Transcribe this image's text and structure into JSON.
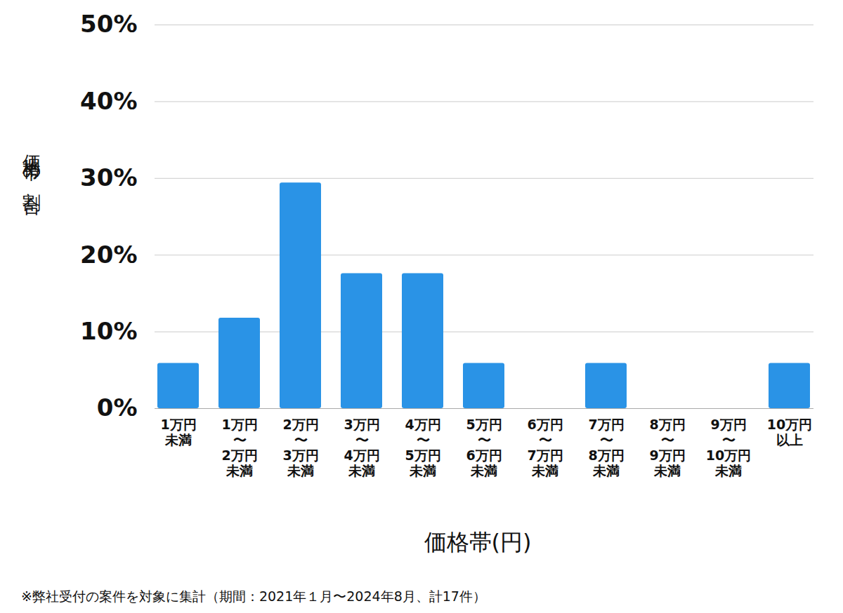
{
  "chart_data": {
    "type": "bar",
    "categories": [
      "1万円\n未満",
      "1万円\n〜\n2万円\n未満",
      "2万円\n〜\n3万円\n未満",
      "3万円\n〜\n4万円\n未満",
      "4万円\n〜\n5万円\n未満",
      "5万円\n〜\n6万円\n未満",
      "6万円\n〜\n7万円\n未満",
      "7万円\n〜\n8万円\n未満",
      "8万円\n〜\n9万円\n未満",
      "9万円\n〜\n10万円\n未満",
      "10万円\n以上"
    ],
    "values": [
      5.9,
      11.8,
      29.4,
      17.6,
      17.6,
      5.9,
      0,
      5.9,
      0,
      0,
      5.9
    ],
    "color": "#2a93e6",
    "x_label": "価格帯(円)",
    "y_label": "価格帯の割合",
    "caption": "※弊社受付の案件を対象に集計（期間：2021年１月〜2024年8月、計17件）",
    "ylim": [
      0,
      50
    ],
    "yticks": [
      {
        "value": 0,
        "label": "0%"
      },
      {
        "value": 10,
        "label": "10%"
      },
      {
        "value": 20,
        "label": "20%"
      },
      {
        "value": 30,
        "label": "30%"
      },
      {
        "value": 40,
        "label": "40%"
      },
      {
        "value": 50,
        "label": "50%"
      }
    ],
    "grid": true
  }
}
